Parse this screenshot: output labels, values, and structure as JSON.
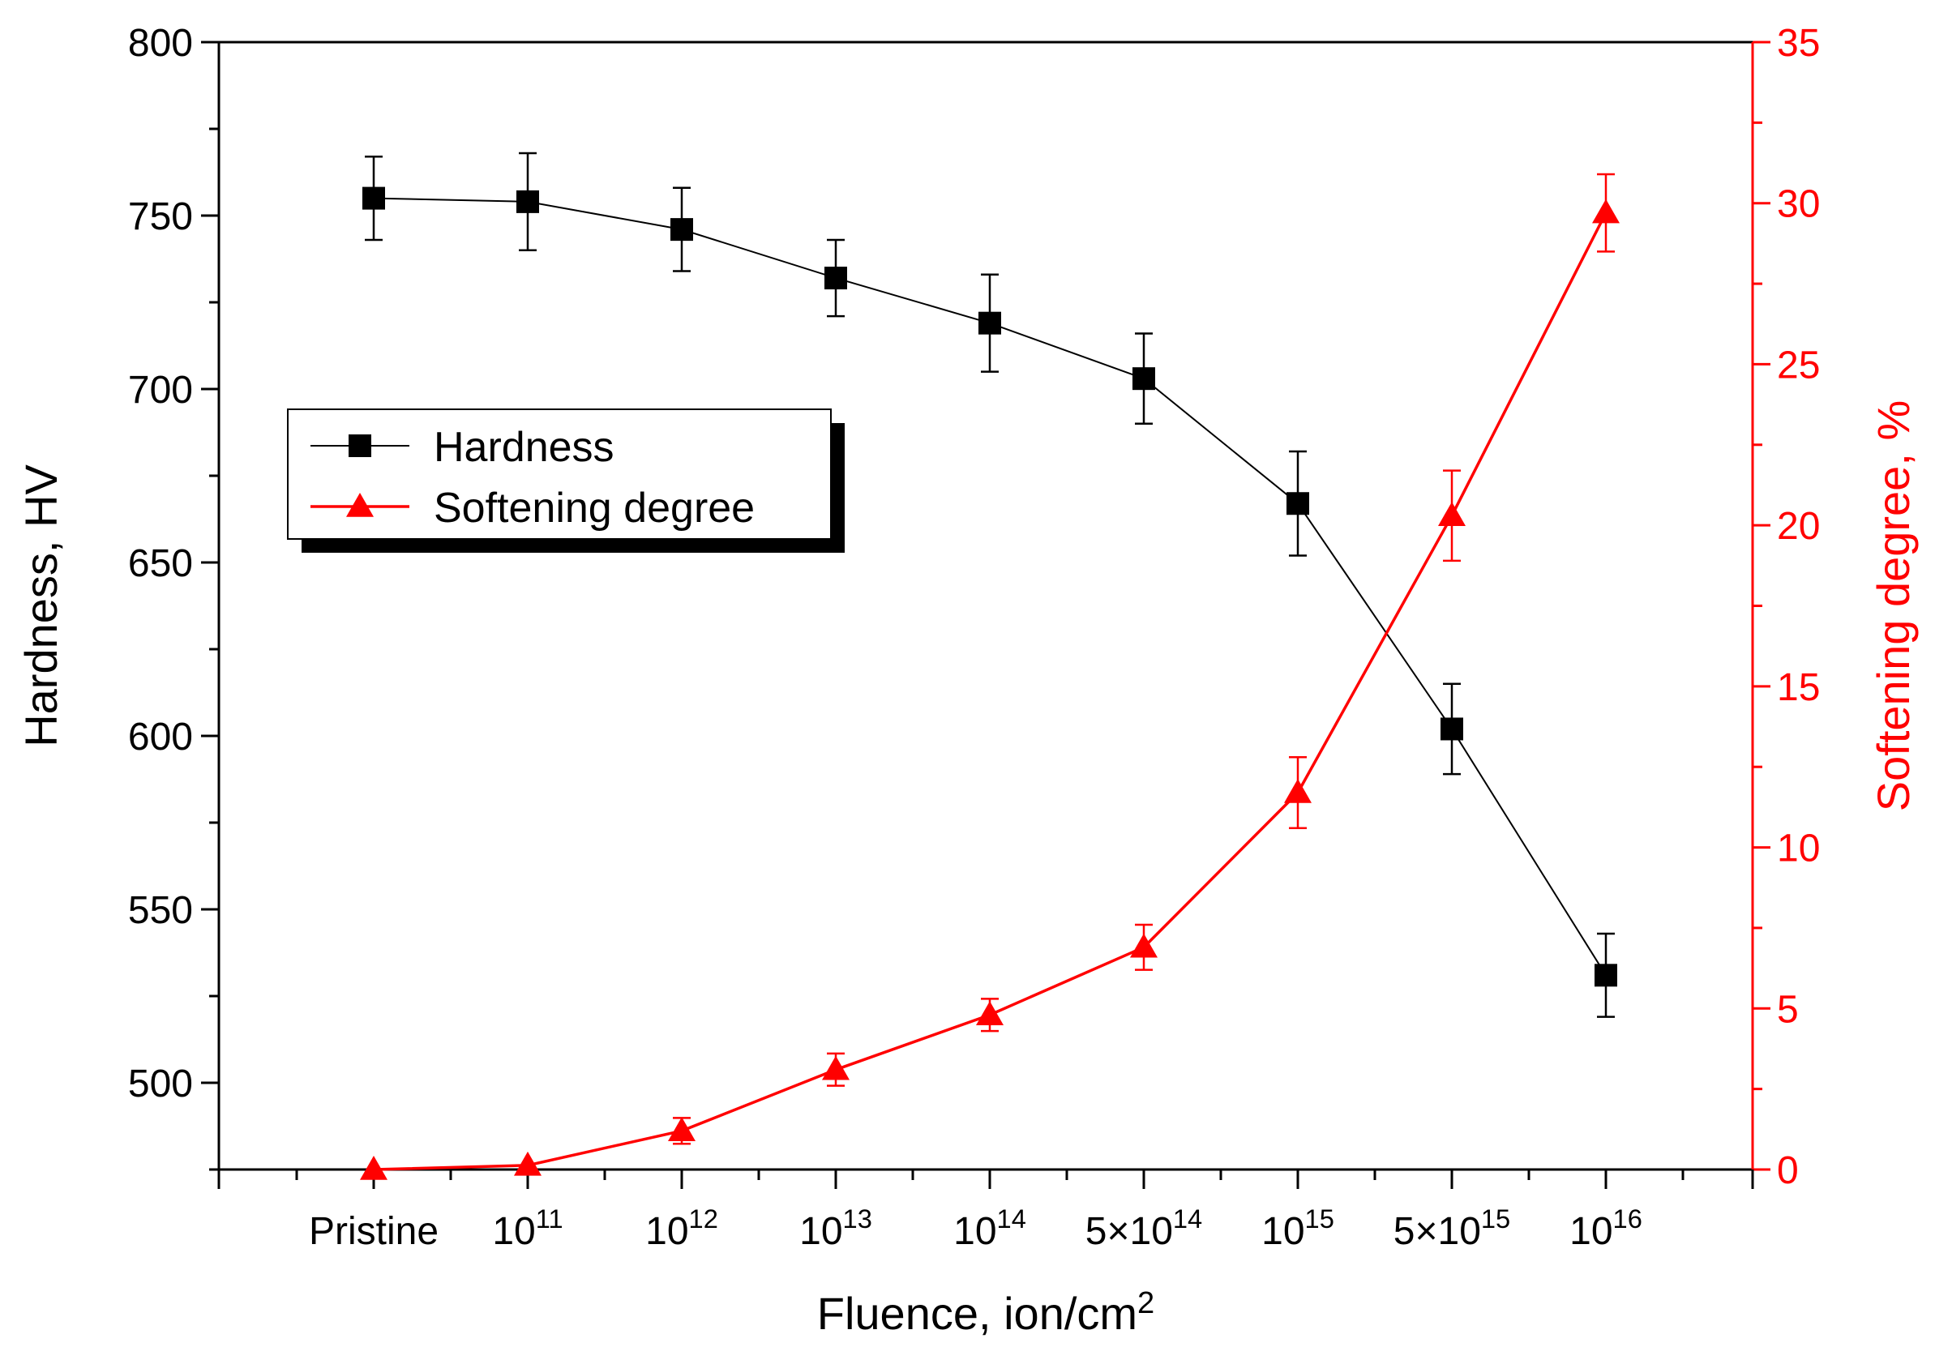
{
  "chart_data": {
    "type": "line",
    "xlabel": "Fluence, ion/cm",
    "xlabel_sup": "2",
    "categories": [
      {
        "base": "Pristine",
        "sup": ""
      },
      {
        "base": "10",
        "sup": "11"
      },
      {
        "base": "10",
        "sup": "12"
      },
      {
        "base": "10",
        "sup": "13"
      },
      {
        "base": "10",
        "sup": "14"
      },
      {
        "base": "5×10",
        "sup": "14"
      },
      {
        "base": "10",
        "sup": "15"
      },
      {
        "base": "5×10",
        "sup": "15"
      },
      {
        "base": "10",
        "sup": "16"
      }
    ],
    "left_axis": {
      "label": "Hardness, HV",
      "ylim": [
        475,
        800
      ],
      "ticks": [
        500,
        550,
        600,
        650,
        700,
        750,
        800
      ],
      "color": "#000000"
    },
    "right_axis": {
      "label": "Softening degree, %",
      "ylim": [
        0,
        35
      ],
      "ticks": [
        0,
        5,
        10,
        15,
        20,
        25,
        30,
        35
      ],
      "color": "#ff0000"
    },
    "series": [
      {
        "name": "Hardness",
        "axis": "left",
        "marker": "square",
        "color": "#000000",
        "values": [
          755,
          754,
          746,
          732,
          719,
          703,
          667,
          602,
          531
        ],
        "errors": [
          12,
          14,
          12,
          11,
          14,
          13,
          15,
          13,
          12
        ]
      },
      {
        "name": "Softening degree",
        "axis": "right",
        "marker": "triangle",
        "color": "#ff0000",
        "values": [
          0.0,
          0.13,
          1.2,
          3.1,
          4.8,
          6.9,
          11.7,
          20.3,
          29.7
        ],
        "errors": [
          0.0,
          0.0,
          0.4,
          0.5,
          0.5,
          0.7,
          1.1,
          1.4,
          1.2
        ]
      }
    ],
    "legend_position": "upper-left"
  }
}
